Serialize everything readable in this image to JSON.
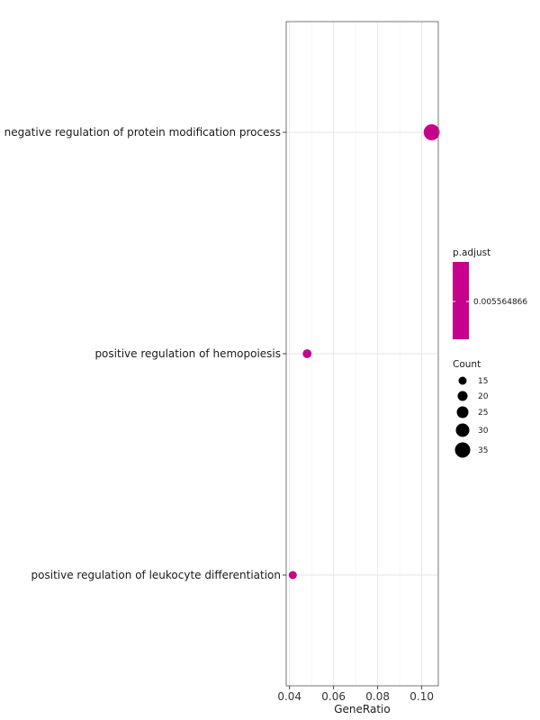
{
  "chart_data": {
    "type": "scatter",
    "title": "",
    "xlabel": "GeneRatio",
    "ylabel": "",
    "xlim": [
      0.0385,
      0.1075
    ],
    "x_ticks": [
      0.04,
      0.06,
      0.08,
      0.1
    ],
    "x_tick_labels": [
      "0.04",
      "0.06",
      "0.08",
      "0.10"
    ],
    "grid": true,
    "categories": [
      "negative regulation of protein modification process",
      "positive regulation of hemopoiesis",
      "positive regulation of leukocyte differentiation"
    ],
    "points": [
      {
        "term": "negative regulation of protein modification process",
        "gene_ratio": 0.1045,
        "count": 37,
        "p_adjust": 0.005564866
      },
      {
        "term": "positive regulation of hemopoiesis",
        "gene_ratio": 0.048,
        "count": 17,
        "p_adjust": 0.005564866
      },
      {
        "term": "positive regulation of leukocyte differentiation",
        "gene_ratio": 0.0415,
        "count": 15,
        "p_adjust": 0.005564866
      }
    ],
    "point_color": "#C6028D",
    "color_legend": {
      "title": "p.adjust",
      "label": "0.005564866",
      "color": "#C6028D"
    },
    "size_legend": {
      "title": "Count",
      "values": [
        15,
        20,
        25,
        30,
        35
      ],
      "labels": [
        "15",
        "20",
        "25",
        "30",
        "35"
      ]
    },
    "legend_position": "right"
  }
}
